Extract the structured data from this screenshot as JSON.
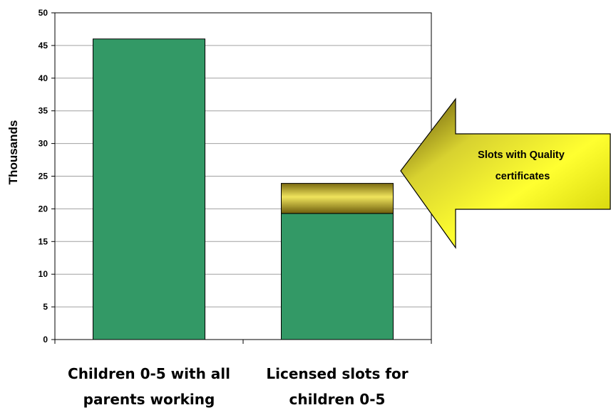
{
  "chart_data": {
    "type": "bar",
    "stacked": true,
    "categories": [
      [
        "Children 0-5 with all",
        "parents working"
      ],
      [
        "Licensed slots for",
        "children 0-5"
      ]
    ],
    "series": [
      {
        "values": [
          46,
          19.3
        ],
        "color": "#339966"
      },
      {
        "values": [
          0,
          4.6
        ],
        "color": "#d4c33a"
      }
    ],
    "ylabel": "Thousands",
    "ylim": [
      0,
      50
    ],
    "yticks": [
      0,
      5,
      10,
      15,
      20,
      25,
      30,
      35,
      40,
      45,
      50
    ],
    "grid": true,
    "annotation": {
      "lines": [
        "Slots with Quality",
        "certificates"
      ],
      "shape": "arrow-left",
      "points_to_category": 1
    }
  }
}
